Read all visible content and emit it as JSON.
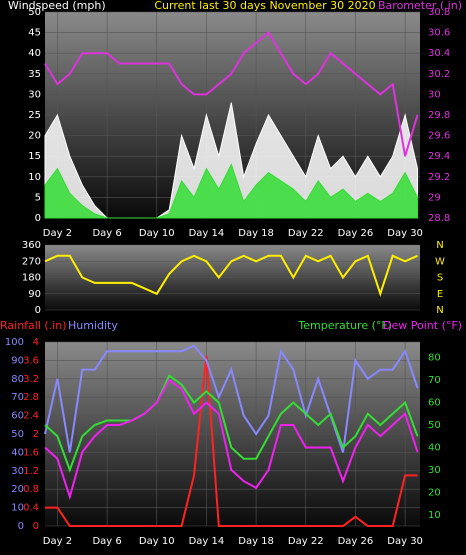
{
  "chart_data": [
    {
      "type": "line",
      "title": "Current last 30 days November 30 2020",
      "x": [
        1,
        2,
        3,
        4,
        5,
        6,
        7,
        8,
        9,
        10,
        11,
        12,
        13,
        14,
        15,
        16,
        17,
        18,
        19,
        20,
        21,
        22,
        23,
        24,
        25,
        26,
        27,
        28,
        29,
        30,
        31
      ],
      "xlim": [
        1,
        31.2
      ],
      "xticks": [
        {
          "value": 2,
          "label": "Day 2"
        },
        {
          "value": 6,
          "label": "Day 6"
        },
        {
          "value": 10,
          "label": "Day 10"
        },
        {
          "value": 14,
          "label": "Day 14"
        },
        {
          "value": 18,
          "label": "Day 18"
        },
        {
          "value": 22,
          "label": "Day 22"
        },
        {
          "value": 26,
          "label": "Day 26"
        },
        {
          "value": 30,
          "label": "Day 30"
        }
      ],
      "ylim": [
        0,
        50
      ],
      "yticks": [
        0,
        5,
        10,
        15,
        20,
        25,
        30,
        35,
        40,
        45,
        50
      ],
      "y2lim": [
        28.8,
        30.8
      ],
      "y2ticks": [
        28.8,
        29,
        29.2,
        29.4,
        29.6,
        29.8,
        30,
        30.2,
        30.4,
        30.6,
        30.8
      ],
      "grid": true,
      "series": [
        {
          "name": "Windspeed (mph)",
          "color": "#ffffff",
          "fill": true,
          "values": [
            20,
            25,
            15,
            8,
            3,
            0,
            0,
            0,
            0,
            0,
            2,
            20,
            12,
            25,
            15,
            28,
            10,
            18,
            25,
            20,
            15,
            10,
            20,
            12,
            15,
            10,
            15,
            10,
            15,
            25,
            12
          ]
        },
        {
          "color": "#33dd33",
          "fill": true,
          "values": [
            8,
            12,
            6,
            3,
            1,
            0,
            0,
            0,
            0,
            0,
            1,
            9,
            5,
            12,
            7,
            13,
            4,
            8,
            11,
            9,
            7,
            4,
            9,
            5,
            7,
            4,
            6,
            4,
            6,
            11,
            5
          ]
        },
        {
          "name": "Barometer (.in)",
          "color": "#dd33dd",
          "axis": "y2",
          "values": [
            30.3,
            30.1,
            30.2,
            30.4,
            30.4,
            30.4,
            30.3,
            30.3,
            30.3,
            30.3,
            30.3,
            30.1,
            30,
            30,
            30.1,
            30.2,
            30.4,
            30.5,
            30.6,
            30.4,
            30.2,
            30.1,
            30.2,
            30.4,
            30.3,
            30.2,
            30.1,
            30,
            30.1,
            29.4,
            29.8
          ]
        }
      ]
    },
    {
      "type": "line",
      "x": [
        1,
        2,
        3,
        4,
        5,
        6,
        7,
        8,
        9,
        10,
        11,
        12,
        13,
        14,
        15,
        16,
        17,
        18,
        19,
        20,
        21,
        22,
        23,
        24,
        25,
        26,
        27,
        28,
        29,
        30,
        31
      ],
      "xlim": [
        1,
        31.2
      ],
      "ylim": [
        0,
        360
      ],
      "yticks": [
        0,
        90,
        180,
        270,
        360
      ],
      "y2lim": [
        0,
        360
      ],
      "y2ticks": [
        {
          "value": 0,
          "label": "N"
        },
        {
          "value": 90,
          "label": "E"
        },
        {
          "value": 180,
          "label": "S"
        },
        {
          "value": 270,
          "label": "W"
        },
        {
          "value": 360,
          "label": "N"
        }
      ],
      "grid": true,
      "series": [
        {
          "color": "#ffee00",
          "values": [
            270,
            300,
            300,
            180,
            150,
            150,
            150,
            150,
            120,
            90,
            200,
            270,
            300,
            270,
            180,
            270,
            300,
            270,
            300,
            300,
            180,
            300,
            270,
            300,
            180,
            270,
            300,
            90,
            300,
            270,
            300
          ]
        }
      ]
    },
    {
      "type": "line",
      "x": [
        1,
        2,
        3,
        4,
        5,
        6,
        7,
        8,
        9,
        10,
        11,
        12,
        13,
        14,
        15,
        16,
        17,
        18,
        19,
        20,
        21,
        22,
        23,
        24,
        25,
        26,
        27,
        28,
        29,
        30,
        31
      ],
      "xlim": [
        1,
        31.2
      ],
      "xticks": [
        {
          "value": 2,
          "label": "Day 2"
        },
        {
          "value": 6,
          "label": "Day 6"
        },
        {
          "value": 10,
          "label": "Day 10"
        },
        {
          "value": 14,
          "label": "Day 14"
        },
        {
          "value": 18,
          "label": "Day 18"
        },
        {
          "value": 22,
          "label": "Day 22"
        },
        {
          "value": 26,
          "label": "Day 26"
        },
        {
          "value": 30,
          "label": "Day 30"
        }
      ],
      "ylim": [
        0,
        100
      ],
      "yticks": [
        0,
        10,
        20,
        30,
        40,
        50,
        60,
        70,
        80,
        90,
        100
      ],
      "y2lim": [
        5,
        87
      ],
      "y2ticks": [
        10,
        20,
        30,
        40,
        50,
        60,
        70,
        80
      ],
      "y3lim": [
        0,
        4
      ],
      "y3ticks": [
        0,
        0.4,
        0.8,
        1.2,
        1.6,
        2,
        2.4,
        2.8,
        3.2,
        3.6,
        4
      ],
      "grid": true,
      "series": [
        {
          "name": "Rainfall (.in)",
          "color": "#ff2222",
          "axis": "y3",
          "values": [
            0.4,
            0.4,
            0,
            0,
            0,
            0,
            0,
            0,
            0,
            0,
            0,
            0,
            1.1,
            3.7,
            0,
            0,
            0,
            0,
            0,
            0,
            0,
            0,
            0,
            0,
            0,
            0.2,
            0,
            0,
            0,
            1.1,
            1.1
          ]
        },
        {
          "name": "Humidity",
          "color": "#8888ff",
          "values": [
            50,
            80,
            40,
            85,
            85,
            95,
            95,
            95,
            95,
            95,
            95,
            95,
            98,
            90,
            70,
            85,
            60,
            50,
            60,
            95,
            85,
            60,
            80,
            60,
            40,
            90,
            80,
            85,
            85,
            95,
            75
          ]
        },
        {
          "name": "Temperature (°F)",
          "color": "#33dd33",
          "axis": "y2",
          "values": [
            50,
            45,
            30,
            45,
            50,
            52,
            52,
            52,
            55,
            60,
            72,
            68,
            60,
            65,
            60,
            40,
            35,
            35,
            45,
            55,
            60,
            55,
            50,
            55,
            40,
            45,
            55,
            50,
            55,
            60,
            45
          ]
        },
        {
          "name": "Dew Point (°F)",
          "color": "#ee22ee",
          "axis": "y2",
          "values": [
            40,
            35,
            18,
            38,
            45,
            50,
            50,
            52,
            55,
            60,
            70,
            66,
            55,
            60,
            55,
            30,
            25,
            22,
            30,
            50,
            50,
            40,
            40,
            40,
            25,
            40,
            50,
            45,
            50,
            55,
            38
          ]
        }
      ]
    }
  ]
}
